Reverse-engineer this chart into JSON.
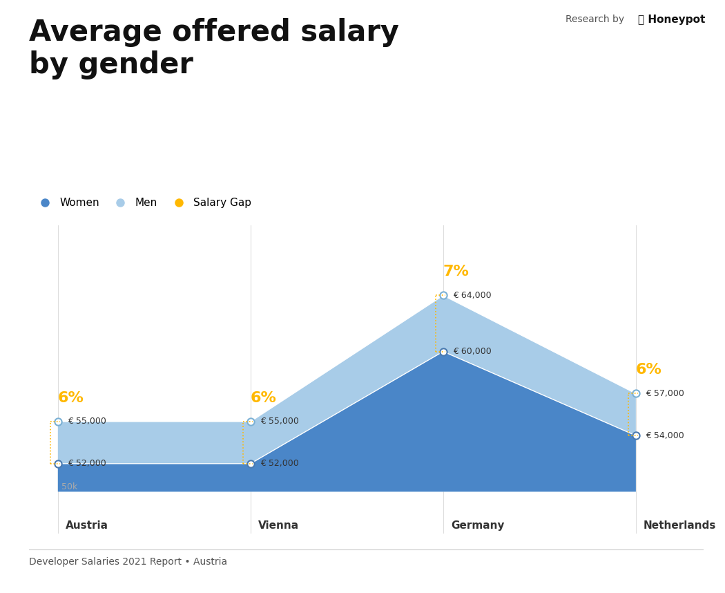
{
  "title": "Average offered salary\nby gender",
  "subtitle": "Developer Salaries 2021 Report • Austria",
  "locations": [
    "Austria",
    "Vienna",
    "Germany",
    "Netherlands"
  ],
  "women_salaries": [
    52000,
    52000,
    60000,
    54000
  ],
  "men_salaries": [
    55000,
    55000,
    64000,
    57000
  ],
  "salary_gaps": [
    "6%",
    "6%",
    "7%",
    "6%"
  ],
  "color_women": "#4a86c8",
  "color_men": "#a8cce8",
  "color_gap": "#FFB800",
  "color_bg": "#ffffff",
  "color_title": "#111111",
  "color_label": "#333333",
  "color_50k": "#aaaaaa",
  "baseline": 50000,
  "y_min": 47000,
  "y_max": 69000,
  "legend_women": "Women",
  "legend_men": "Men",
  "legend_gap": "Salary Gap"
}
